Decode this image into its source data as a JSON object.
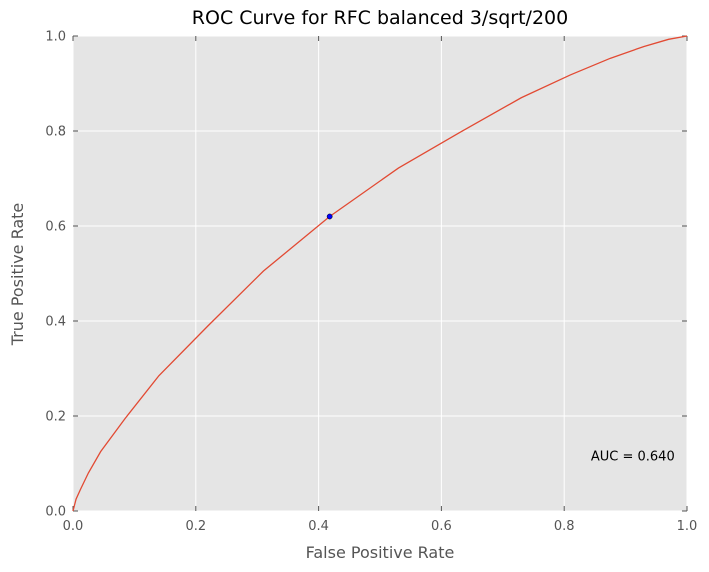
{
  "chart_data": {
    "type": "line",
    "title": "ROC Curve for RFC balanced 3/sqrt/200",
    "xlabel": "False Positive Rate",
    "ylabel": "True Positive Rate",
    "xlim": [
      0.0,
      1.0
    ],
    "ylim": [
      0.0,
      1.0
    ],
    "xticks": [
      "0.0",
      "0.2",
      "0.4",
      "0.6",
      "0.8",
      "1.0"
    ],
    "yticks": [
      "0.0",
      "0.2",
      "0.4",
      "0.6",
      "0.8",
      "1.0"
    ],
    "grid": true,
    "background_color": "#e5e5e5",
    "line_color": "#e24a33",
    "point_color": "#0000ff",
    "series": [
      {
        "x": [
          0.0,
          0.005,
          0.012,
          0.025,
          0.045,
          0.085,
          0.14,
          0.22,
          0.31,
          0.418,
          0.53,
          0.63,
          0.73,
          0.81,
          0.875,
          0.93,
          0.97,
          1.0
        ],
        "y": [
          0.0,
          0.025,
          0.045,
          0.08,
          0.125,
          0.195,
          0.285,
          0.39,
          0.505,
          0.62,
          0.722,
          0.797,
          0.87,
          0.918,
          0.953,
          0.978,
          0.993,
          1.0
        ]
      }
    ],
    "operating_point": {
      "x": 0.418,
      "y": 0.62
    },
    "annotation": {
      "text": "AUC = 0.640",
      "x": 0.98,
      "y": 0.115
    }
  }
}
